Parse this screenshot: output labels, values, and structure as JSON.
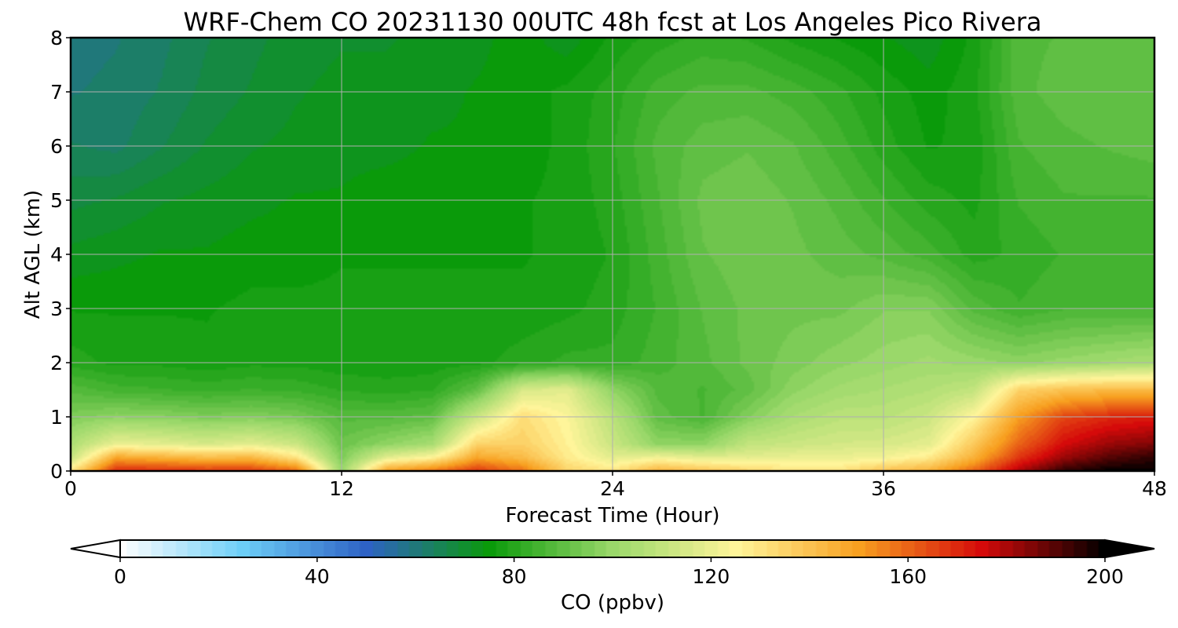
{
  "chart_data": {
    "type": "heatmap",
    "title": "WRF-Chem CO  20231130 00UTC 48h fcst at Los Angeles Pico Rivera",
    "xlabel": "Forecast Time (Hour)",
    "ylabel": "Alt AGL (km)",
    "xlim": [
      0,
      48
    ],
    "ylim": [
      0,
      8
    ],
    "xticks": [
      "0",
      "12",
      "24",
      "36",
      "48"
    ],
    "yticks": [
      "0",
      "1",
      "2",
      "3",
      "4",
      "5",
      "6",
      "7",
      "8"
    ],
    "grid": true,
    "colorbar": {
      "label": "CO  (ppbv)",
      "range": [
        0,
        200
      ],
      "ticks": [
        "0",
        "40",
        "80",
        "120",
        "160",
        "200"
      ],
      "extend": "both",
      "colors": [
        "#ffffff",
        "#6ccef7",
        "#2e62c5",
        "#0a9a0a",
        "#9ad86a",
        "#fff59a",
        "#f8a020",
        "#d50a0a",
        "#000000"
      ]
    },
    "x_hours": [
      0,
      2,
      4,
      6,
      8,
      10,
      12,
      14,
      16,
      18,
      20,
      22,
      24,
      26,
      28,
      30,
      32,
      34,
      36,
      38,
      40,
      42,
      44,
      46,
      48
    ],
    "y_km": [
      0,
      0.25,
      0.5,
      1,
      1.5,
      2,
      3,
      4,
      5,
      6,
      7,
      8
    ],
    "co_ppbv": [
      [
        130,
        170,
        170,
        168,
        168,
        160,
        100,
        150,
        158,
        168,
        158,
        135,
        130,
        145,
        140,
        135,
        130,
        130,
        140,
        145,
        160,
        180,
        195,
        200,
        200
      ],
      [
        110,
        148,
        145,
        142,
        143,
        130,
        95,
        118,
        125,
        148,
        142,
        128,
        118,
        122,
        118,
        118,
        120,
        120,
        122,
        128,
        145,
        168,
        182,
        190,
        195
      ],
      [
        105,
        120,
        118,
        115,
        118,
        112,
        92,
        98,
        103,
        135,
        136,
        126,
        112,
        98,
        98,
        110,
        112,
        114,
        115,
        118,
        138,
        160,
        175,
        182,
        185
      ],
      [
        95,
        98,
        97,
        95,
        96,
        94,
        88,
        88,
        90,
        112,
        132,
        124,
        108,
        90,
        86,
        96,
        104,
        108,
        108,
        112,
        125,
        150,
        165,
        170,
        172
      ],
      [
        88,
        85,
        84,
        83,
        84,
        83,
        81,
        80,
        81,
        90,
        115,
        118,
        98,
        88,
        86,
        90,
        98,
        102,
        104,
        106,
        110,
        135,
        140,
        142,
        142
      ],
      [
        80,
        78,
        78,
        77,
        78,
        78,
        77,
        77,
        77,
        78,
        80,
        82,
        82,
        85,
        88,
        92,
        95,
        98,
        100,
        102,
        100,
        98,
        100,
        102,
        104
      ],
      [
        76,
        76,
        76,
        76,
        77,
        77,
        77,
        77,
        77,
        77,
        77,
        78,
        80,
        84,
        89,
        92,
        93,
        93,
        96,
        96,
        88,
        84,
        86,
        86,
        86
      ],
      [
        72,
        73,
        74,
        74,
        75,
        75,
        76,
        76,
        76,
        76,
        76,
        77,
        79,
        85,
        91,
        93,
        92,
        90,
        88,
        85,
        80,
        82,
        84,
        84,
        85
      ],
      [
        68,
        69,
        71,
        72,
        73,
        74,
        74,
        75,
        75,
        76,
        76,
        77,
        80,
        86,
        92,
        93,
        91,
        88,
        84,
        80,
        78,
        84,
        86,
        86,
        86
      ],
      [
        64,
        63,
        66,
        69,
        71,
        72,
        73,
        73,
        74,
        74,
        75,
        77,
        81,
        87,
        90,
        91,
        89,
        85,
        80,
        76,
        77,
        86,
        88,
        89,
        90
      ],
      [
        61,
        62,
        64,
        67,
        69,
        71,
        72,
        72,
        73,
        74,
        75,
        77,
        80,
        85,
        87,
        87,
        85,
        82,
        78,
        75,
        78,
        88,
        90,
        91,
        91
      ],
      [
        60,
        61,
        63,
        66,
        68,
        70,
        71,
        71,
        72,
        73,
        75,
        72,
        77,
        80,
        82,
        81,
        78,
        76,
        74,
        72,
        77,
        88,
        89,
        90,
        89
      ]
    ]
  }
}
